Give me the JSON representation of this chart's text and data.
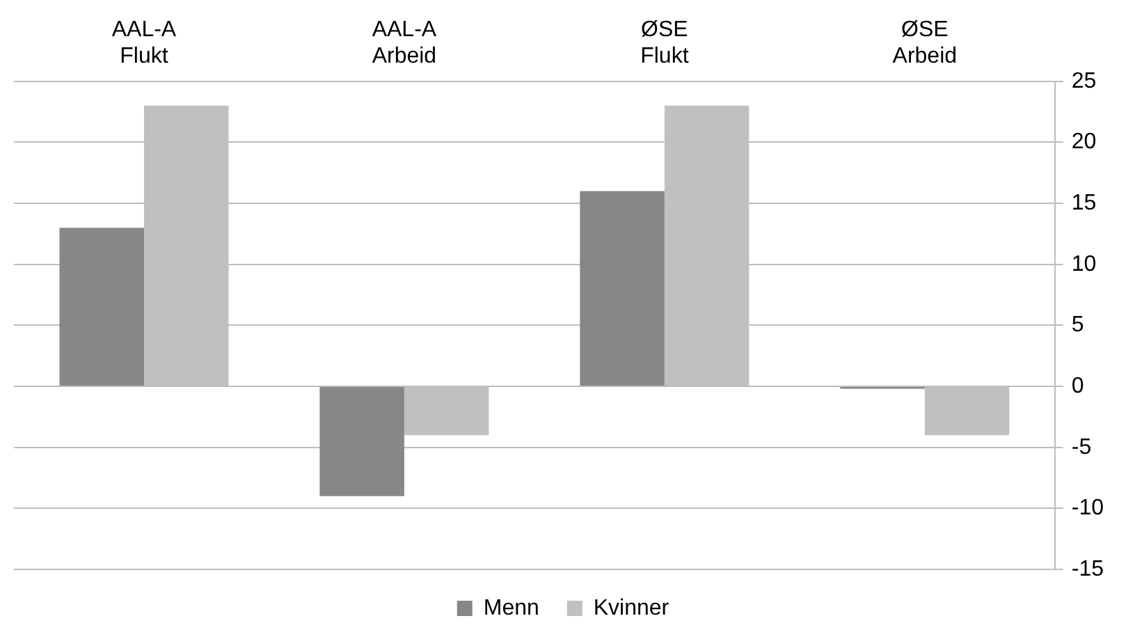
{
  "chart_data": {
    "type": "bar",
    "categories": [
      "AAL-A\nFlukt",
      "AAL-A\nArbeid",
      "ØSE\nFlukt",
      "ØSE\nArbeid"
    ],
    "series": [
      {
        "name": "Menn",
        "color": "#878787",
        "values": [
          13,
          -9,
          16,
          -0.2
        ]
      },
      {
        "name": "Kvinner",
        "color": "#c0c0c0",
        "values": [
          23,
          -4,
          23,
          -4
        ]
      }
    ],
    "ylim": [
      -15,
      25
    ],
    "yticks": [
      -15,
      -10,
      -5,
      0,
      5,
      10,
      15,
      20,
      25
    ],
    "grid": "y",
    "legend": "bottom"
  }
}
